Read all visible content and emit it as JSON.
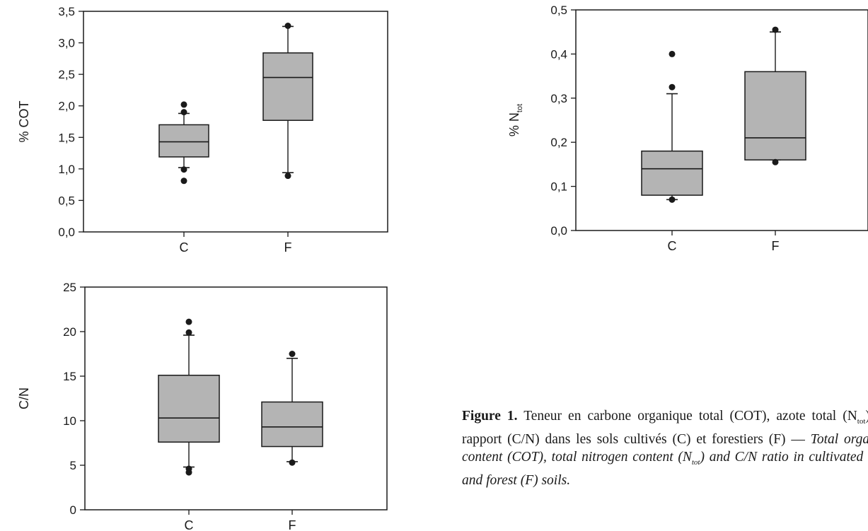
{
  "chart_data": [
    {
      "type": "box",
      "ylabel": "% COT",
      "categories": [
        "C",
        "F"
      ],
      "ylim": [
        0,
        3.5
      ],
      "yticks": [
        "0,0",
        "0,5",
        "1,0",
        "1,5",
        "2,0",
        "2,5",
        "3,0",
        "3,5"
      ],
      "boxes": [
        {
          "name": "C",
          "whisker_low": 1.02,
          "q1": 1.19,
          "median": 1.43,
          "q3": 1.7,
          "whisker_high": 1.88,
          "outliers": [
            0.81,
            0.99,
            1.9,
            2.02
          ]
        },
        {
          "name": "F",
          "whisker_low": 0.94,
          "q1": 1.77,
          "median": 2.45,
          "q3": 2.84,
          "whisker_high": 3.26,
          "outliers": [
            0.89,
            3.27
          ]
        }
      ]
    },
    {
      "type": "box",
      "ylabel_main": "% N",
      "ylabel_sub": "tot",
      "categories": [
        "C",
        "F"
      ],
      "ylim": [
        0,
        0.5
      ],
      "yticks": [
        "0,0",
        "0,1",
        "0,2",
        "0,3",
        "0,4",
        "0,5"
      ],
      "boxes": [
        {
          "name": "C",
          "whisker_low": 0.07,
          "q1": 0.08,
          "median": 0.14,
          "q3": 0.18,
          "whisker_high": 0.31,
          "outliers": [
            0.07,
            0.325,
            0.4
          ]
        },
        {
          "name": "F",
          "whisker_low": 0.16,
          "q1": 0.16,
          "median": 0.21,
          "q3": 0.36,
          "whisker_high": 0.45,
          "outliers": [
            0.155,
            0.455
          ]
        }
      ]
    },
    {
      "type": "box",
      "ylabel": "C/N",
      "categories": [
        "C",
        "F"
      ],
      "ylim": [
        0,
        25
      ],
      "yticks": [
        "0",
        "5",
        "10",
        "15",
        "20",
        "25"
      ],
      "boxes": [
        {
          "name": "C",
          "whisker_low": 4.8,
          "q1": 7.6,
          "median": 10.3,
          "q3": 15.1,
          "whisker_high": 19.6,
          "outliers": [
            4.2,
            4.6,
            19.9,
            21.1
          ]
        },
        {
          "name": "F",
          "whisker_low": 5.4,
          "q1": 7.1,
          "median": 9.3,
          "q3": 12.1,
          "whisker_high": 17.0,
          "outliers": [
            5.3,
            17.5
          ]
        }
      ]
    }
  ],
  "caption": {
    "label": "Figure 1.",
    "fr_1": " Teneur en carbone organique total (COT), azote total (N",
    "fr_sub": "tot",
    "fr_2": ") et rapport (C/N) dans les sols cultivés (C) et forestiers (F) — ",
    "en_1": "Total organic content (COT), total nitrogen content (N",
    "en_sub": "tot",
    "en_2": ") and C/N ratio in cultivated (C) and forest (F) soils."
  },
  "colors": {
    "box_fill": "#b4b4b4",
    "line": "#1a1a1a"
  }
}
